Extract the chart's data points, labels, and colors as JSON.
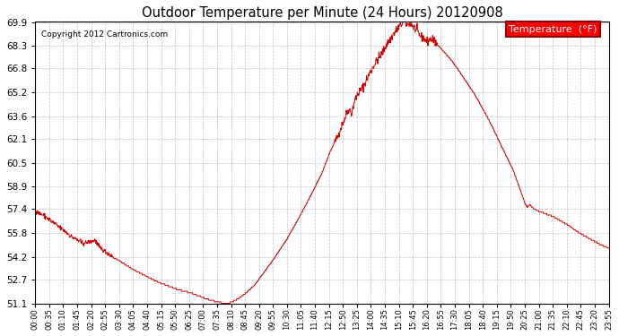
{
  "title": "Outdoor Temperature per Minute (24 Hours) 20120908",
  "copyright_text": "Copyright 2012 Cartronics.com",
  "legend_label": "Temperature  (°F)",
  "line_color": "#cc0000",
  "background_color": "#ffffff",
  "grid_color": "#b0b0b0",
  "yticks": [
    51.1,
    52.7,
    54.2,
    55.8,
    57.4,
    58.9,
    60.5,
    62.1,
    63.6,
    65.2,
    66.8,
    68.3,
    69.9
  ],
  "ymin": 51.1,
  "ymax": 69.9,
  "xtick_labels": [
    "00:00",
    "00:35",
    "01:10",
    "01:45",
    "02:20",
    "02:55",
    "03:30",
    "04:05",
    "04:40",
    "05:15",
    "05:50",
    "06:25",
    "07:00",
    "07:35",
    "08:10",
    "08:45",
    "09:20",
    "09:55",
    "10:30",
    "11:05",
    "11:40",
    "12:15",
    "12:50",
    "13:25",
    "14:00",
    "14:35",
    "15:10",
    "15:45",
    "16:20",
    "16:55",
    "17:30",
    "18:05",
    "18:40",
    "19:15",
    "19:50",
    "20:25",
    "21:00",
    "21:35",
    "22:10",
    "22:45",
    "23:20",
    "23:55"
  ],
  "keypoints": [
    [
      0,
      57.3
    ],
    [
      20,
      56.8
    ],
    [
      50,
      56.2
    ],
    [
      80,
      55.6
    ],
    [
      110,
      55.0
    ],
    [
      140,
      55.2
    ],
    [
      160,
      54.8
    ],
    [
      190,
      54.2
    ],
    [
      220,
      53.7
    ],
    [
      250,
      53.3
    ],
    [
      280,
      52.9
    ],
    [
      310,
      52.6
    ],
    [
      330,
      52.5
    ],
    [
      360,
      52.3
    ],
    [
      380,
      52.1
    ],
    [
      390,
      52.0
    ],
    [
      395,
      51.9
    ],
    [
      400,
      51.8
    ],
    [
      410,
      51.6
    ],
    [
      420,
      51.5
    ],
    [
      430,
      51.4
    ],
    [
      440,
      51.3
    ],
    [
      450,
      51.2
    ],
    [
      460,
      51.18
    ],
    [
      370,
      52.1
    ],
    [
      385,
      51.95
    ],
    [
      470,
      51.15
    ],
    [
      380,
      52.0
    ],
    [
      472,
      51.13
    ],
    [
      474,
      51.12
    ],
    [
      476,
      51.11
    ],
    [
      478,
      51.1
    ],
    [
      480,
      51.1
    ],
    [
      490,
      51.15
    ],
    [
      500,
      51.2
    ],
    [
      510,
      51.3
    ],
    [
      520,
      51.45
    ],
    [
      530,
      51.7
    ],
    [
      540,
      52.0
    ],
    [
      560,
      52.5
    ],
    [
      580,
      53.2
    ],
    [
      600,
      54.0
    ],
    [
      620,
      54.9
    ],
    [
      640,
      55.9
    ],
    [
      660,
      57.0
    ],
    [
      680,
      58.2
    ],
    [
      700,
      59.5
    ],
    [
      720,
      60.8
    ],
    [
      740,
      62.0
    ],
    [
      755,
      62.8
    ],
    [
      760,
      63.0
    ],
    [
      770,
      63.3
    ],
    [
      775,
      63.6
    ],
    [
      780,
      63.8
    ],
    [
      785,
      64.1
    ],
    [
      790,
      63.7
    ],
    [
      795,
      64.3
    ],
    [
      800,
      64.6
    ],
    [
      805,
      64.9
    ],
    [
      810,
      65.2
    ],
    [
      813,
      65.0
    ],
    [
      816,
      65.3
    ],
    [
      820,
      65.5
    ],
    [
      825,
      66.0
    ],
    [
      830,
      65.8
    ],
    [
      835,
      66.2
    ],
    [
      840,
      66.5
    ],
    [
      845,
      66.8
    ],
    [
      850,
      66.5
    ],
    [
      855,
      66.9
    ],
    [
      860,
      67.2
    ],
    [
      865,
      67.0
    ],
    [
      870,
      67.3
    ],
    [
      875,
      67.6
    ],
    [
      880,
      68.0
    ],
    [
      885,
      68.2
    ],
    [
      890,
      68.5
    ],
    [
      895,
      68.8
    ],
    [
      900,
      69.0
    ],
    [
      905,
      69.3
    ],
    [
      910,
      69.5
    ],
    [
      915,
      69.7
    ],
    [
      920,
      69.8
    ],
    [
      925,
      69.9
    ],
    [
      930,
      69.8
    ],
    [
      935,
      69.6
    ],
    [
      940,
      69.5
    ],
    [
      945,
      69.7
    ],
    [
      950,
      69.9
    ],
    [
      955,
      69.7
    ],
    [
      960,
      69.5
    ],
    [
      965,
      69.3
    ],
    [
      970,
      69.2
    ],
    [
      975,
      69.0
    ],
    [
      980,
      68.8
    ],
    [
      985,
      68.7
    ],
    [
      990,
      68.5
    ],
    [
      995,
      68.8
    ],
    [
      1000,
      68.6
    ],
    [
      1010,
      68.4
    ],
    [
      1020,
      68.2
    ],
    [
      1030,
      68.0
    ],
    [
      1040,
      67.8
    ],
    [
      1050,
      67.5
    ],
    [
      1060,
      67.2
    ],
    [
      1070,
      66.8
    ],
    [
      1080,
      66.5
    ],
    [
      1090,
      66.0
    ],
    [
      1100,
      65.5
    ],
    [
      1110,
      65.0
    ],
    [
      1120,
      64.3
    ],
    [
      1130,
      63.5
    ],
    [
      1140,
      62.8
    ],
    [
      1150,
      62.0
    ],
    [
      1160,
      61.2
    ],
    [
      1170,
      60.4
    ],
    [
      1180,
      59.6
    ],
    [
      1190,
      58.9
    ],
    [
      1200,
      58.3
    ],
    [
      1210,
      57.8
    ],
    [
      1220,
      57.4
    ],
    [
      1230,
      57.3
    ],
    [
      1235,
      57.5
    ],
    [
      1240,
      57.6
    ],
    [
      1245,
      57.5
    ],
    [
      1250,
      57.4
    ],
    [
      1260,
      57.3
    ],
    [
      1270,
      57.2
    ],
    [
      1280,
      57.1
    ],
    [
      1290,
      57.0
    ],
    [
      1300,
      56.9
    ],
    [
      1310,
      56.8
    ],
    [
      1320,
      56.6
    ],
    [
      1330,
      56.4
    ],
    [
      1340,
      56.2
    ],
    [
      1350,
      56.0
    ],
    [
      1360,
      55.8
    ],
    [
      1370,
      55.6
    ],
    [
      1380,
      55.4
    ],
    [
      1390,
      55.3
    ],
    [
      1400,
      55.2
    ],
    [
      1410,
      55.1
    ],
    [
      1420,
      55.0
    ],
    [
      1430,
      54.9
    ],
    [
      1440,
      54.8
    ]
  ]
}
